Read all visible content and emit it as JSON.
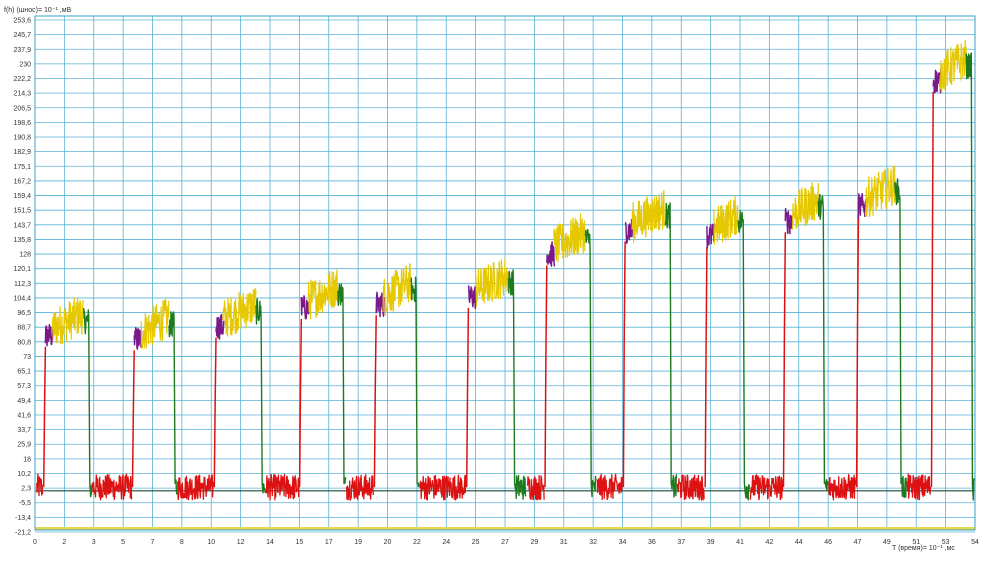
{
  "chart_data": {
    "type": "line",
    "ylabel": "f(h) (шнос)= 10⁻¹ ,мВ",
    "xlabel": "T (время)= 10⁻¹ ,мс",
    "x_ticks": [
      "0",
      "2",
      "3",
      "5",
      "7",
      "8",
      "10",
      "12",
      "14",
      "15",
      "17",
      "19",
      "20",
      "22",
      "24",
      "25",
      "27",
      "29",
      "31",
      "32",
      "34",
      "36",
      "37",
      "39",
      "41",
      "42",
      "44",
      "46",
      "47",
      "49",
      "51",
      "53",
      "54"
    ],
    "y_ticks": [
      "253,6",
      "245,7",
      "237,9",
      "230",
      "222,2",
      "214,3",
      "206,5",
      "198,6",
      "190,8",
      "182,9",
      "175,1",
      "167,2",
      "159,4",
      "151,5",
      "143,7",
      "135,8",
      "128",
      "120,1",
      "112,3",
      "104,4",
      "96,5",
      "88,7",
      "80,8",
      "73",
      "65,1",
      "57,3",
      "49,4",
      "41,6",
      "33,7",
      "25,9",
      "18",
      "10,2",
      "2,3",
      "-5,5",
      "-13,4",
      "-21,2"
    ],
    "xlim": [
      0,
      54
    ],
    "ylim": [
      -21.2,
      257
    ],
    "grid": true,
    "baseline": 0,
    "colors": {
      "rest": "#dd1111",
      "rise": "#7a1a8a",
      "plateau": "#e6c800",
      "fall": "#1e7a1e",
      "grid": "#5ab2d6",
      "bottom_band": "#e6d84a"
    },
    "series": [
      {
        "rest_start": 0.1,
        "rise": 0.5,
        "end": 3.1,
        "level": 88
      },
      {
        "rest_start": 3.3,
        "rise": 5.6,
        "end": 8.0,
        "level": 86
      },
      {
        "rest_start": 8.2,
        "rise": 10.3,
        "end": 13.0,
        "level": 93
      },
      {
        "rest_start": 13.3,
        "rise": 15.2,
        "end": 17.7,
        "level": 103
      },
      {
        "rest_start": 17.9,
        "rise": 19.5,
        "end": 21.9,
        "level": 105
      },
      {
        "rest_start": 22.1,
        "rise": 24.8,
        "end": 27.5,
        "level": 109
      },
      {
        "rest_start": 28.3,
        "rise": 29.3,
        "end": 31.9,
        "level": 132
      },
      {
        "rest_start": 32.3,
        "rise": 33.8,
        "end": 36.5,
        "level": 145
      },
      {
        "rest_start": 36.9,
        "rise": 38.5,
        "end": 40.7,
        "level": 142
      },
      {
        "rest_start": 41.1,
        "rise": 43.0,
        "end": 45.3,
        "level": 150
      },
      {
        "rest_start": 45.6,
        "rise": 47.2,
        "end": 49.7,
        "level": 158
      },
      {
        "rest_start": 50.1,
        "rise": 51.5,
        "end": 53.8,
        "level": 226
      }
    ]
  }
}
